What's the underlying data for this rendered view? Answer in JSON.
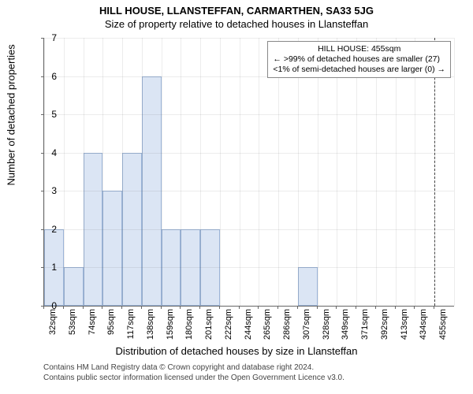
{
  "title_main": "HILL HOUSE, LLANSTEFFAN, CARMARTHEN, SA33 5JG",
  "title_sub": "Size of property relative to detached houses in Llansteffan",
  "chart": {
    "type": "histogram",
    "bar_color": "#dbe5f4",
    "bar_border_color": "#9bb4d8",
    "grid_color": "#666666",
    "background_color": "#ffffff",
    "ylim": [
      0,
      7
    ],
    "ytick_step": 1,
    "ylabel": "Number of detached properties",
    "xlabel": "Distribution of detached houses by size in Llansteffan",
    "x_categories": [
      "32sqm",
      "53sqm",
      "74sqm",
      "95sqm",
      "117sqm",
      "138sqm",
      "159sqm",
      "180sqm",
      "201sqm",
      "222sqm",
      "244sqm",
      "265sqm",
      "286sqm",
      "307sqm",
      "328sqm",
      "349sqm",
      "371sqm",
      "392sqm",
      "413sqm",
      "434sqm",
      "455sqm"
    ],
    "values": [
      2,
      1,
      4,
      3,
      4,
      6,
      2,
      2,
      2,
      0,
      0,
      0,
      0,
      1,
      0,
      0,
      0,
      0,
      0,
      0,
      0
    ],
    "marker_position_index": 20,
    "annot_title": "HILL HOUSE: 455sqm",
    "annot_line1": "← >99% of detached houses are smaller (27)",
    "annot_line2": "<1% of semi-detached houses are larger (0) →",
    "title_fontsize": 13,
    "label_fontsize": 13,
    "tick_fontsize": 11
  },
  "footer_line1": "Contains HM Land Registry data © Crown copyright and database right 2024.",
  "footer_line2": "Contains public sector information licensed under the Open Government Licence v3.0."
}
